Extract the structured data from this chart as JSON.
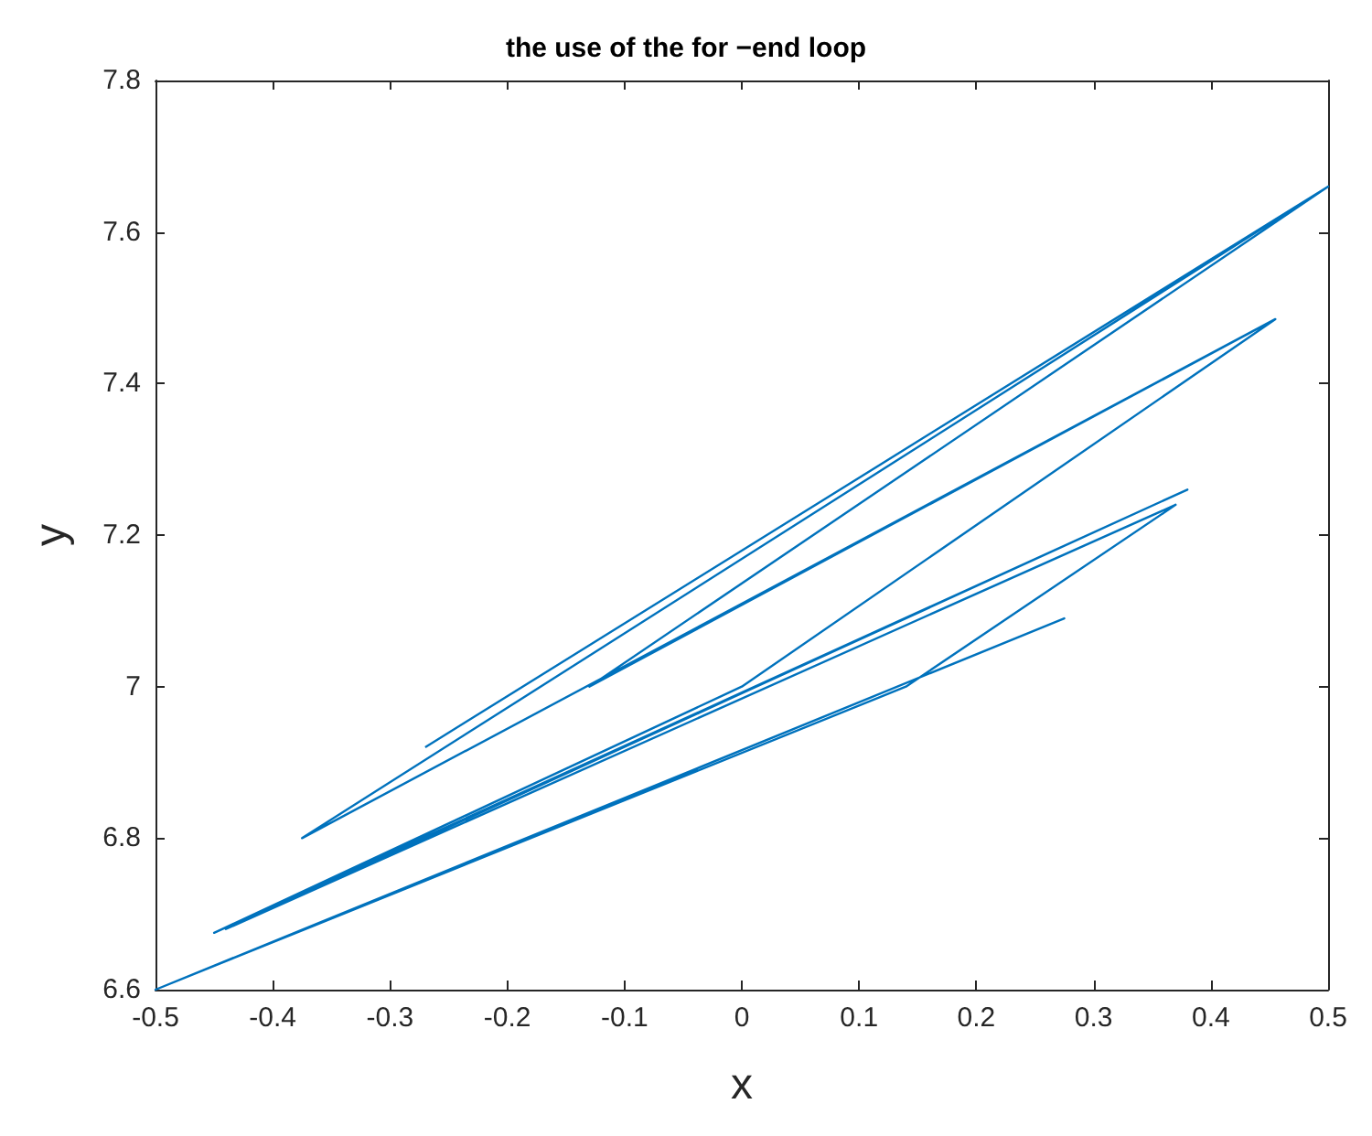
{
  "chart_data": {
    "type": "line",
    "title": "the use of the for −end loop",
    "xlabel": "x",
    "ylabel": "y",
    "x": [
      -0.27,
      0.5,
      -0.375,
      0.5,
      -0.13,
      0.455,
      -0.375,
      0.455,
      0.0,
      -0.45,
      0.38,
      -0.44,
      0.37,
      0.14,
      -0.5,
      0.275,
      -0.5,
      0.275
    ],
    "series": [
      {
        "color": "#0072bd",
        "values": [
          6.92,
          7.66,
          6.8,
          7.66,
          7.0,
          7.485,
          6.8,
          7.485,
          7.0,
          6.675,
          7.26,
          6.68,
          7.24,
          7.0,
          6.6,
          7.09,
          6.6,
          7.09
        ]
      }
    ],
    "xlim": [
      -0.5,
      0.5
    ],
    "xticks": [
      -0.5,
      -0.4,
      -0.3,
      -0.2,
      -0.1,
      0,
      0.1,
      0.2,
      0.3,
      0.4,
      0.5
    ],
    "ylim": [
      6.6,
      7.8
    ],
    "yticks": [
      6.6,
      6.8,
      7,
      7.2,
      7.4,
      7.6,
      7.8
    ],
    "grid": false,
    "marker": "none",
    "line_style": "solid"
  }
}
